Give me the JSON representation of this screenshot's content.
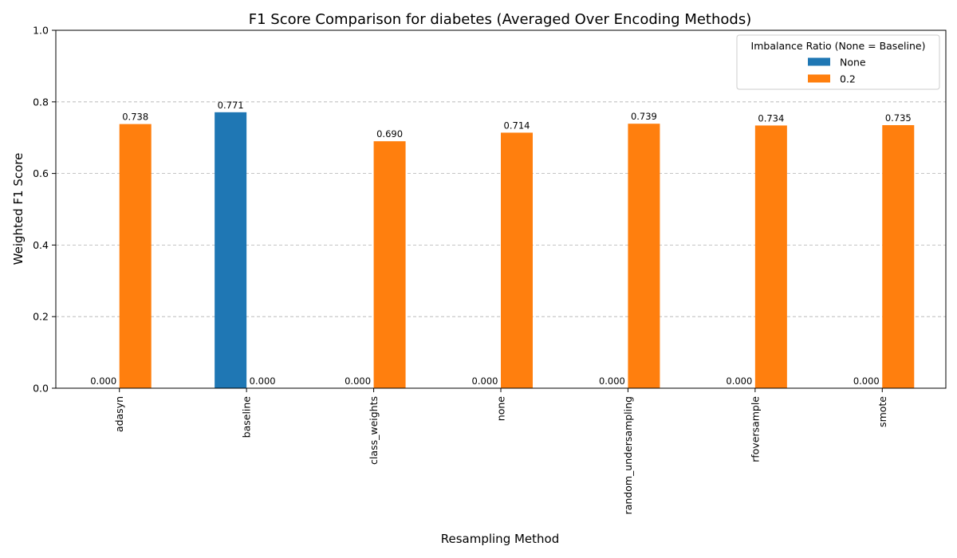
{
  "chart_data": {
    "type": "bar",
    "title": "F1 Score Comparison for diabetes (Averaged Over Encoding Methods)",
    "xlabel": "Resampling Method",
    "ylabel": "Weighted F1 Score",
    "ylim": [
      0,
      1.0
    ],
    "yticks": [
      0.0,
      0.2,
      0.4,
      0.6,
      0.8,
      1.0
    ],
    "ytick_labels": [
      "0.0",
      "0.2",
      "0.4",
      "0.6",
      "0.8",
      "1.0"
    ],
    "grid": "y-dashed",
    "categories": [
      "adasyn",
      "baseline",
      "class_weights",
      "none",
      "random_undersampling",
      "rfoversample",
      "smote"
    ],
    "series": [
      {
        "name": "None",
        "color": "#1f77b4",
        "values": [
          0.0,
          0.771,
          0.0,
          0.0,
          0.0,
          0.0,
          0.0
        ],
        "labels": [
          "0.000",
          "0.771",
          "0.000",
          "0.000",
          "0.000",
          "0.000",
          "0.000"
        ]
      },
      {
        "name": "0.2",
        "color": "#ff7f0e",
        "values": [
          0.738,
          0.0,
          0.69,
          0.714,
          0.739,
          0.734,
          0.735
        ],
        "labels": [
          "0.738",
          "0.000",
          "0.690",
          "0.714",
          "0.739",
          "0.734",
          "0.735"
        ]
      }
    ],
    "legend": {
      "title": "Imbalance Ratio (None = Baseline)",
      "placement": "top-right"
    }
  }
}
